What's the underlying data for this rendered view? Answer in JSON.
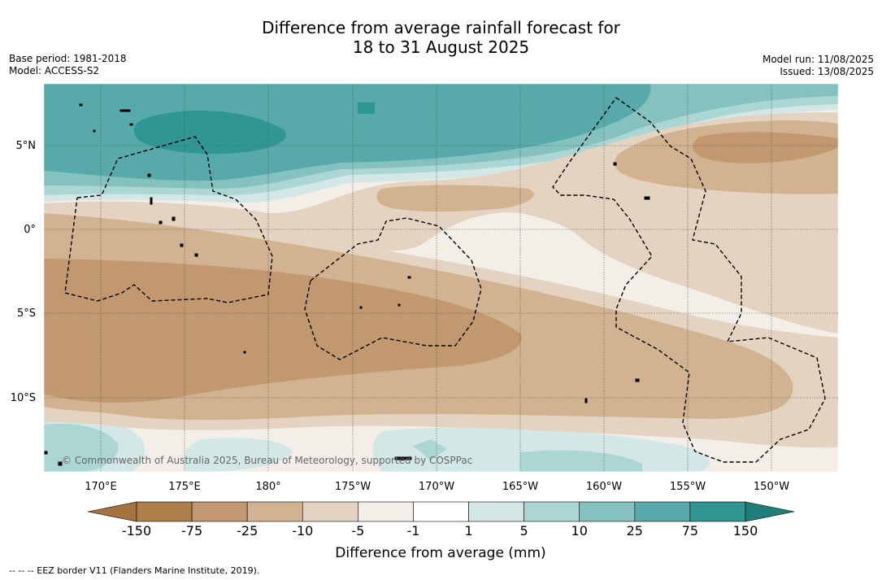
{
  "title": {
    "line1": "Difference from average rainfall forecast for",
    "line2": "18 to 31 August 2025"
  },
  "meta_left": {
    "base_period": "Base period: 1981-2018",
    "model": "Model: ACCESS-S2"
  },
  "meta_right": {
    "model_run": "Model run: 11/08/2025",
    "issued": "Issued: 13/08/2025"
  },
  "map": {
    "lat_ticks": [
      "5°N",
      "0°",
      "5°S",
      "10°S"
    ],
    "lon_ticks": [
      "170°E",
      "175°E",
      "180°",
      "175°W",
      "170°W",
      "165°W",
      "160°W",
      "155°W",
      "150°W"
    ],
    "copyright": "© Commonwealth of Australia 2025, Bureau of Meteorology, supported by COSPPac"
  },
  "colorbar": {
    "title": "Difference from average (mm)",
    "labels": [
      "-150",
      "-75",
      "-25",
      "-10",
      "-5",
      "-1",
      "1",
      "5",
      "10",
      "25",
      "75",
      "150"
    ],
    "colors": [
      "#a4733e",
      "#ae7f4b",
      "#c19870",
      "#d2b391",
      "#e4d3c1",
      "#f4eee9",
      "#ffffff",
      "#d3e8e6",
      "#acd6d4",
      "#84c1bf",
      "#57aaa9",
      "#2f9693",
      "#1f7d7a"
    ]
  },
  "footnote": "--  --  -- EEZ border V11 (Flanders Marine Institute, 2019)."
}
